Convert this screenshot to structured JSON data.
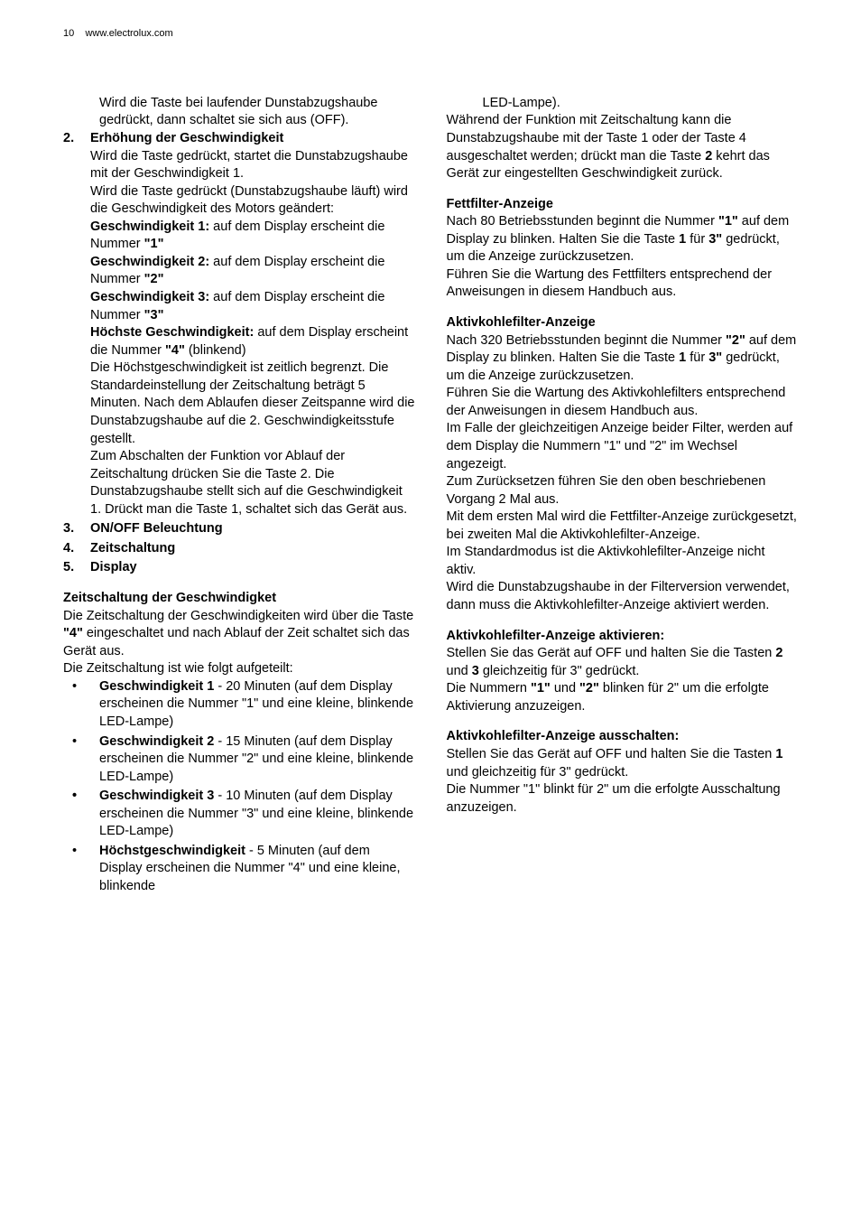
{
  "header": {
    "pageNum": "10",
    "url": "www.electrolux.com"
  },
  "left": {
    "intro": "Wird die Taste bei laufender Dunstabzugshaube gedrückt, dann schaltet sie sich aus (OFF).",
    "item2": {
      "num": "2.",
      "title": "Erhöhung der Geschwindigkeit",
      "p1": "Wird die Taste gedrückt, startet die Dunstabzugshaube mit der Geschwindigkeit 1.",
      "p2": "Wird die Taste gedrückt (Dunstabzugshaube läuft) wird die Geschwindigkeit des Motors geändert:",
      "g1b": "Geschwindigkeit 1:",
      "g1t": " auf dem Display erscheint die Nummer ",
      "g1q": "\"1\"",
      "g2b": "Geschwindigkeit 2:",
      "g2t": " auf dem Display erscheint die Nummer ",
      "g2q": "\"2\"",
      "g3b": "Geschwindigkeit 3:",
      "g3t": " auf dem Display erscheint die Nummer ",
      "g3q": "\"3\"",
      "g4b": "Höchste Geschwindigkeit:",
      "g4t": " auf dem Display erscheint die Nummer ",
      "g4q": "\"4\"",
      "g4x": " (blinkend)",
      "p3": "Die Höchstgeschwindigkeit ist zeitlich begrenzt. Die Standardeinstellung der Zeitschaltung beträgt 5 Minuten. Nach dem Ablaufen dieser Zeitspanne wird die Dunstabzugshaube auf die 2. Geschwindigkeitsstufe gestellt.",
      "p4": "Zum Abschalten der Funktion vor Ablauf der Zeitschaltung drücken Sie die Taste 2. Die Dunstabzugshaube stellt sich auf die Geschwindigkeit 1. Drückt man die Taste 1, schaltet sich das Gerät aus."
    },
    "item3": {
      "num": "3.",
      "title": "ON/OFF Beleuchtung"
    },
    "item4": {
      "num": "4.",
      "title": "Zeitschaltung"
    },
    "item5": {
      "num": "5.",
      "title": "Display"
    },
    "zeit": {
      "heading": "Zeitschaltung der Geschwindigket",
      "p1a": "Die Zeitschaltung der Geschwindigkeiten wird über die Taste ",
      "p1q": "\"4\"",
      "p1b": " eingeschaltet und nach Ablauf der Zeit schaltet sich das Gerät aus.",
      "p2": "Die Zeitschaltung ist wie folgt aufgeteilt:",
      "b1b": "Geschwindigkeit 1",
      "b1t": " - 20 Minuten (auf dem Display erscheinen die Nummer \"1\" und eine kleine, blinkende LED-Lampe)",
      "b2b": "Geschwindigkeit 2",
      "b2t": " - 15 Minuten (auf dem Display erscheinen die Nummer \"2\" und eine kleine, blinkende LED-Lampe)",
      "b3b": "Geschwindigkeit 3",
      "b3t": " - 10 Minuten (auf dem Display erscheinen die Nummer \"3\" und eine kleine, blinkende LED-Lampe)",
      "b4b": "Höchstgeschwindigkeit",
      "b4t": " - 5 Minuten (auf dem Display erscheinen die Nummer \"4\" und eine kleine, blinkende"
    }
  },
  "right": {
    "led": "LED-Lampe).",
    "p1a": "Während der Funktion mit Zeitschaltung kann die Dunstabzugshaube mit der Taste 1 oder der Taste 4 ausgeschaltet werden; drückt man die Taste ",
    "p1b": "2",
    "p1c": " kehrt das Gerät zur eingestellten Geschwindigkeit zurück.",
    "fett": {
      "heading": "Fettfilter-Anzeige",
      "p1a": "Nach 80 Betriebsstunden beginnt die Nummer ",
      "p1q": "\"1\"",
      "p1b": " auf dem Display zu blinken. Halten Sie die Taste ",
      "p1c": "1",
      "p1d": " für ",
      "p1e": "3\"",
      "p1f": " gedrückt, um die Anzeige zurückzusetzen.",
      "p2": "Führen Sie die Wartung des Fettfilters entsprechend der Anweisungen in diesem Handbuch aus."
    },
    "aktiv": {
      "heading": "Aktivkohlefilter-Anzeige",
      "p1a": "Nach 320 Betriebsstunden beginnt die Nummer ",
      "p1q": "\"2\"",
      "p1b": " auf dem Display zu blinken. Halten Sie die Taste ",
      "p1c": "1",
      "p1d": " für ",
      "p1e": "3\"",
      "p1f": " gedrückt, um die Anzeige zurückzusetzen.",
      "p2": "Führen Sie die Wartung des Aktivkohlefilters entsprechend der Anweisungen in diesem Handbuch aus.",
      "p3": "Im Falle der gleichzeitigen Anzeige beider Filter, werden auf dem Display die Nummern \"1\" und \"2\" im Wechsel angezeigt.",
      "p4": "Zum Zurücksetzen führen Sie den oben beschriebenen Vorgang 2 Mal aus.",
      "p5": "Mit dem ersten Mal wird die Fettfilter-Anzeige zurückgesetzt, bei zweiten Mal die Aktivkohlefilter-Anzeige.",
      "p6": "Im Standardmodus ist die Aktivkohlefilter-Anzeige nicht aktiv.",
      "p7": "Wird die Dunstabzugshaube in der Filterversion verwendet, dann muss die Aktivkohlefilter-Anzeige aktiviert werden."
    },
    "aktivieren": {
      "heading": "Aktivkohlefilter-Anzeige aktivieren:",
      "p1a": "Stellen Sie das Gerät auf OFF und halten Sie die Tasten ",
      "p1b": "2",
      "p1c": " und ",
      "p1d": "3",
      "p1e": " gleichzeitig für 3\" gedrückt.",
      "p2a": "Die Nummern ",
      "p2b": "\"1\"",
      "p2c": " und ",
      "p2d": "\"2\"",
      "p2e": " blinken für 2\" um die erfolgte Aktivierung anzuzeigen."
    },
    "ausschalten": {
      "heading": "Aktivkohlefilter-Anzeige ausschalten:",
      "p1a": "Stellen Sie das Gerät auf OFF und halten Sie die Tasten ",
      "p1b": "1",
      "p1c": " und  gleichzeitig für 3\" gedrückt.",
      "p2": "Die Nummer \"1\" blinkt für 2\" um die erfolgte Ausschaltung anzuzeigen."
    }
  }
}
